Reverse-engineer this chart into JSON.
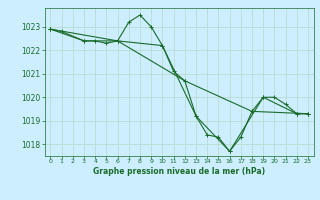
{
  "title": "Graphe pression niveau de la mer (hPa)",
  "bg_color": "#cceeff",
  "grid_color": "#b8ddd0",
  "line_color": "#1a6b2a",
  "xlim": [
    -0.5,
    23.5
  ],
  "ylim": [
    1017.5,
    1023.8
  ],
  "yticks": [
    1018,
    1019,
    1020,
    1021,
    1022,
    1023
  ],
  "xticks": [
    0,
    1,
    2,
    3,
    4,
    5,
    6,
    7,
    8,
    9,
    10,
    11,
    12,
    13,
    14,
    15,
    16,
    17,
    18,
    19,
    20,
    21,
    22,
    23
  ],
  "series": [
    {
      "x": [
        0,
        1,
        3,
        4,
        5,
        6,
        7,
        8,
        9,
        10,
        11,
        12,
        13,
        14,
        15,
        16,
        17,
        18,
        19,
        20,
        21,
        22,
        23
      ],
      "y": [
        1022.9,
        1022.8,
        1022.4,
        1022.4,
        1022.3,
        1022.4,
        1023.2,
        1023.5,
        1023.0,
        1022.2,
        1021.1,
        1020.7,
        1019.2,
        1018.4,
        1018.3,
        1017.7,
        1018.3,
        1019.4,
        1020.0,
        1020.0,
        1019.7,
        1019.3,
        1019.3
      ]
    },
    {
      "x": [
        0,
        3,
        6,
        10,
        13,
        16,
        19,
        22,
        23
      ],
      "y": [
        1022.9,
        1022.4,
        1022.4,
        1022.2,
        1019.2,
        1017.7,
        1020.0,
        1019.3,
        1019.3
      ]
    },
    {
      "x": [
        0,
        6,
        12,
        18,
        23
      ],
      "y": [
        1022.9,
        1022.4,
        1020.7,
        1019.4,
        1019.3
      ]
    }
  ]
}
